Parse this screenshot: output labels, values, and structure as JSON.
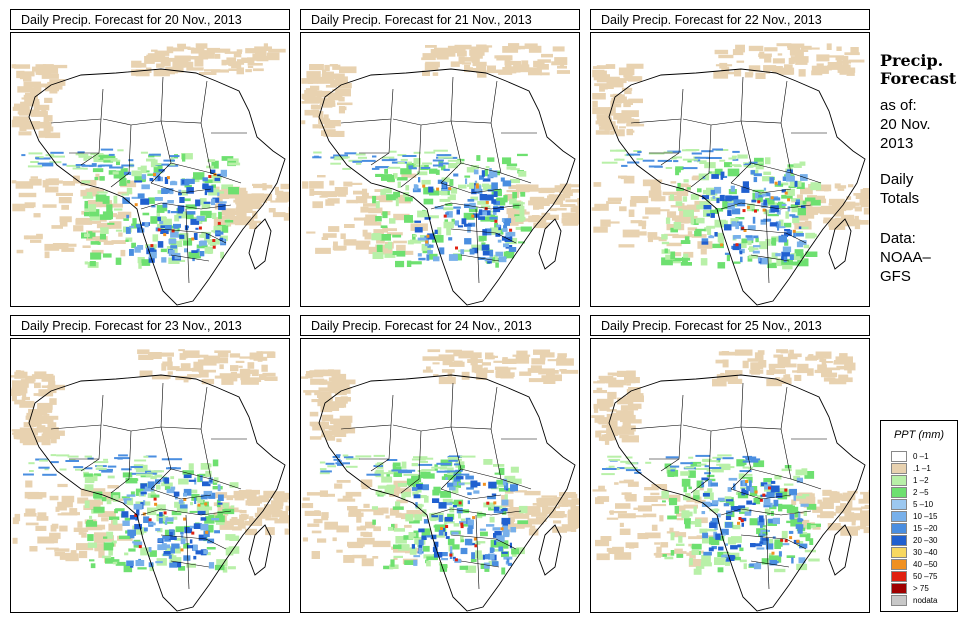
{
  "panels": [
    {
      "title": "Daily Precip. Forecast for  20 Nov., 2013",
      "seed": 11
    },
    {
      "title": "Daily Precip. Forecast for  21 Nov., 2013",
      "seed": 23
    },
    {
      "title": "Daily Precip. Forecast for  22 Nov., 2013",
      "seed": 37
    },
    {
      "title": "Daily Precip. Forecast for  23 Nov., 2013",
      "seed": 41
    },
    {
      "title": "Daily Precip. Forecast for  24 Nov., 2013",
      "seed": 53
    },
    {
      "title": "Daily Precip. Forecast for  25 Nov., 2013",
      "seed": 67
    }
  ],
  "sidebar": {
    "heading_line1": "Precip.",
    "heading_line2": "Forecast",
    "as_of": "as of:",
    "date_line1": "20 Nov.",
    "date_line2": "2013",
    "totals_line1": "Daily",
    "totals_line2": "Totals",
    "data_line1": "Data:",
    "data_line2": "NOAA–",
    "data_line3": "GFS"
  },
  "legend": {
    "title": "PPT (mm)",
    "items": [
      {
        "label": "0 –1",
        "color": "#ffffff"
      },
      {
        "label": ".1 –1",
        "color": "#e8d2b0"
      },
      {
        "label": "1 –2",
        "color": "#b8f0a8"
      },
      {
        "label": "2 –5",
        "color": "#6ee070"
      },
      {
        "label": "5 –10",
        "color": "#9cc8f0"
      },
      {
        "label": "10 –15",
        "color": "#78b0ea"
      },
      {
        "label": "15 –20",
        "color": "#4a8ee0"
      },
      {
        "label": "20 –30",
        "color": "#2060d0"
      },
      {
        "label": "30 –40",
        "color": "#f8d860"
      },
      {
        "label": "40 –50",
        "color": "#f09020"
      },
      {
        "label": "50 –75",
        "color": "#e02010"
      },
      {
        "label": "> 75",
        "color": "#a00000"
      },
      {
        "label": "nodata",
        "color": "#c8c8c8"
      }
    ]
  }
}
